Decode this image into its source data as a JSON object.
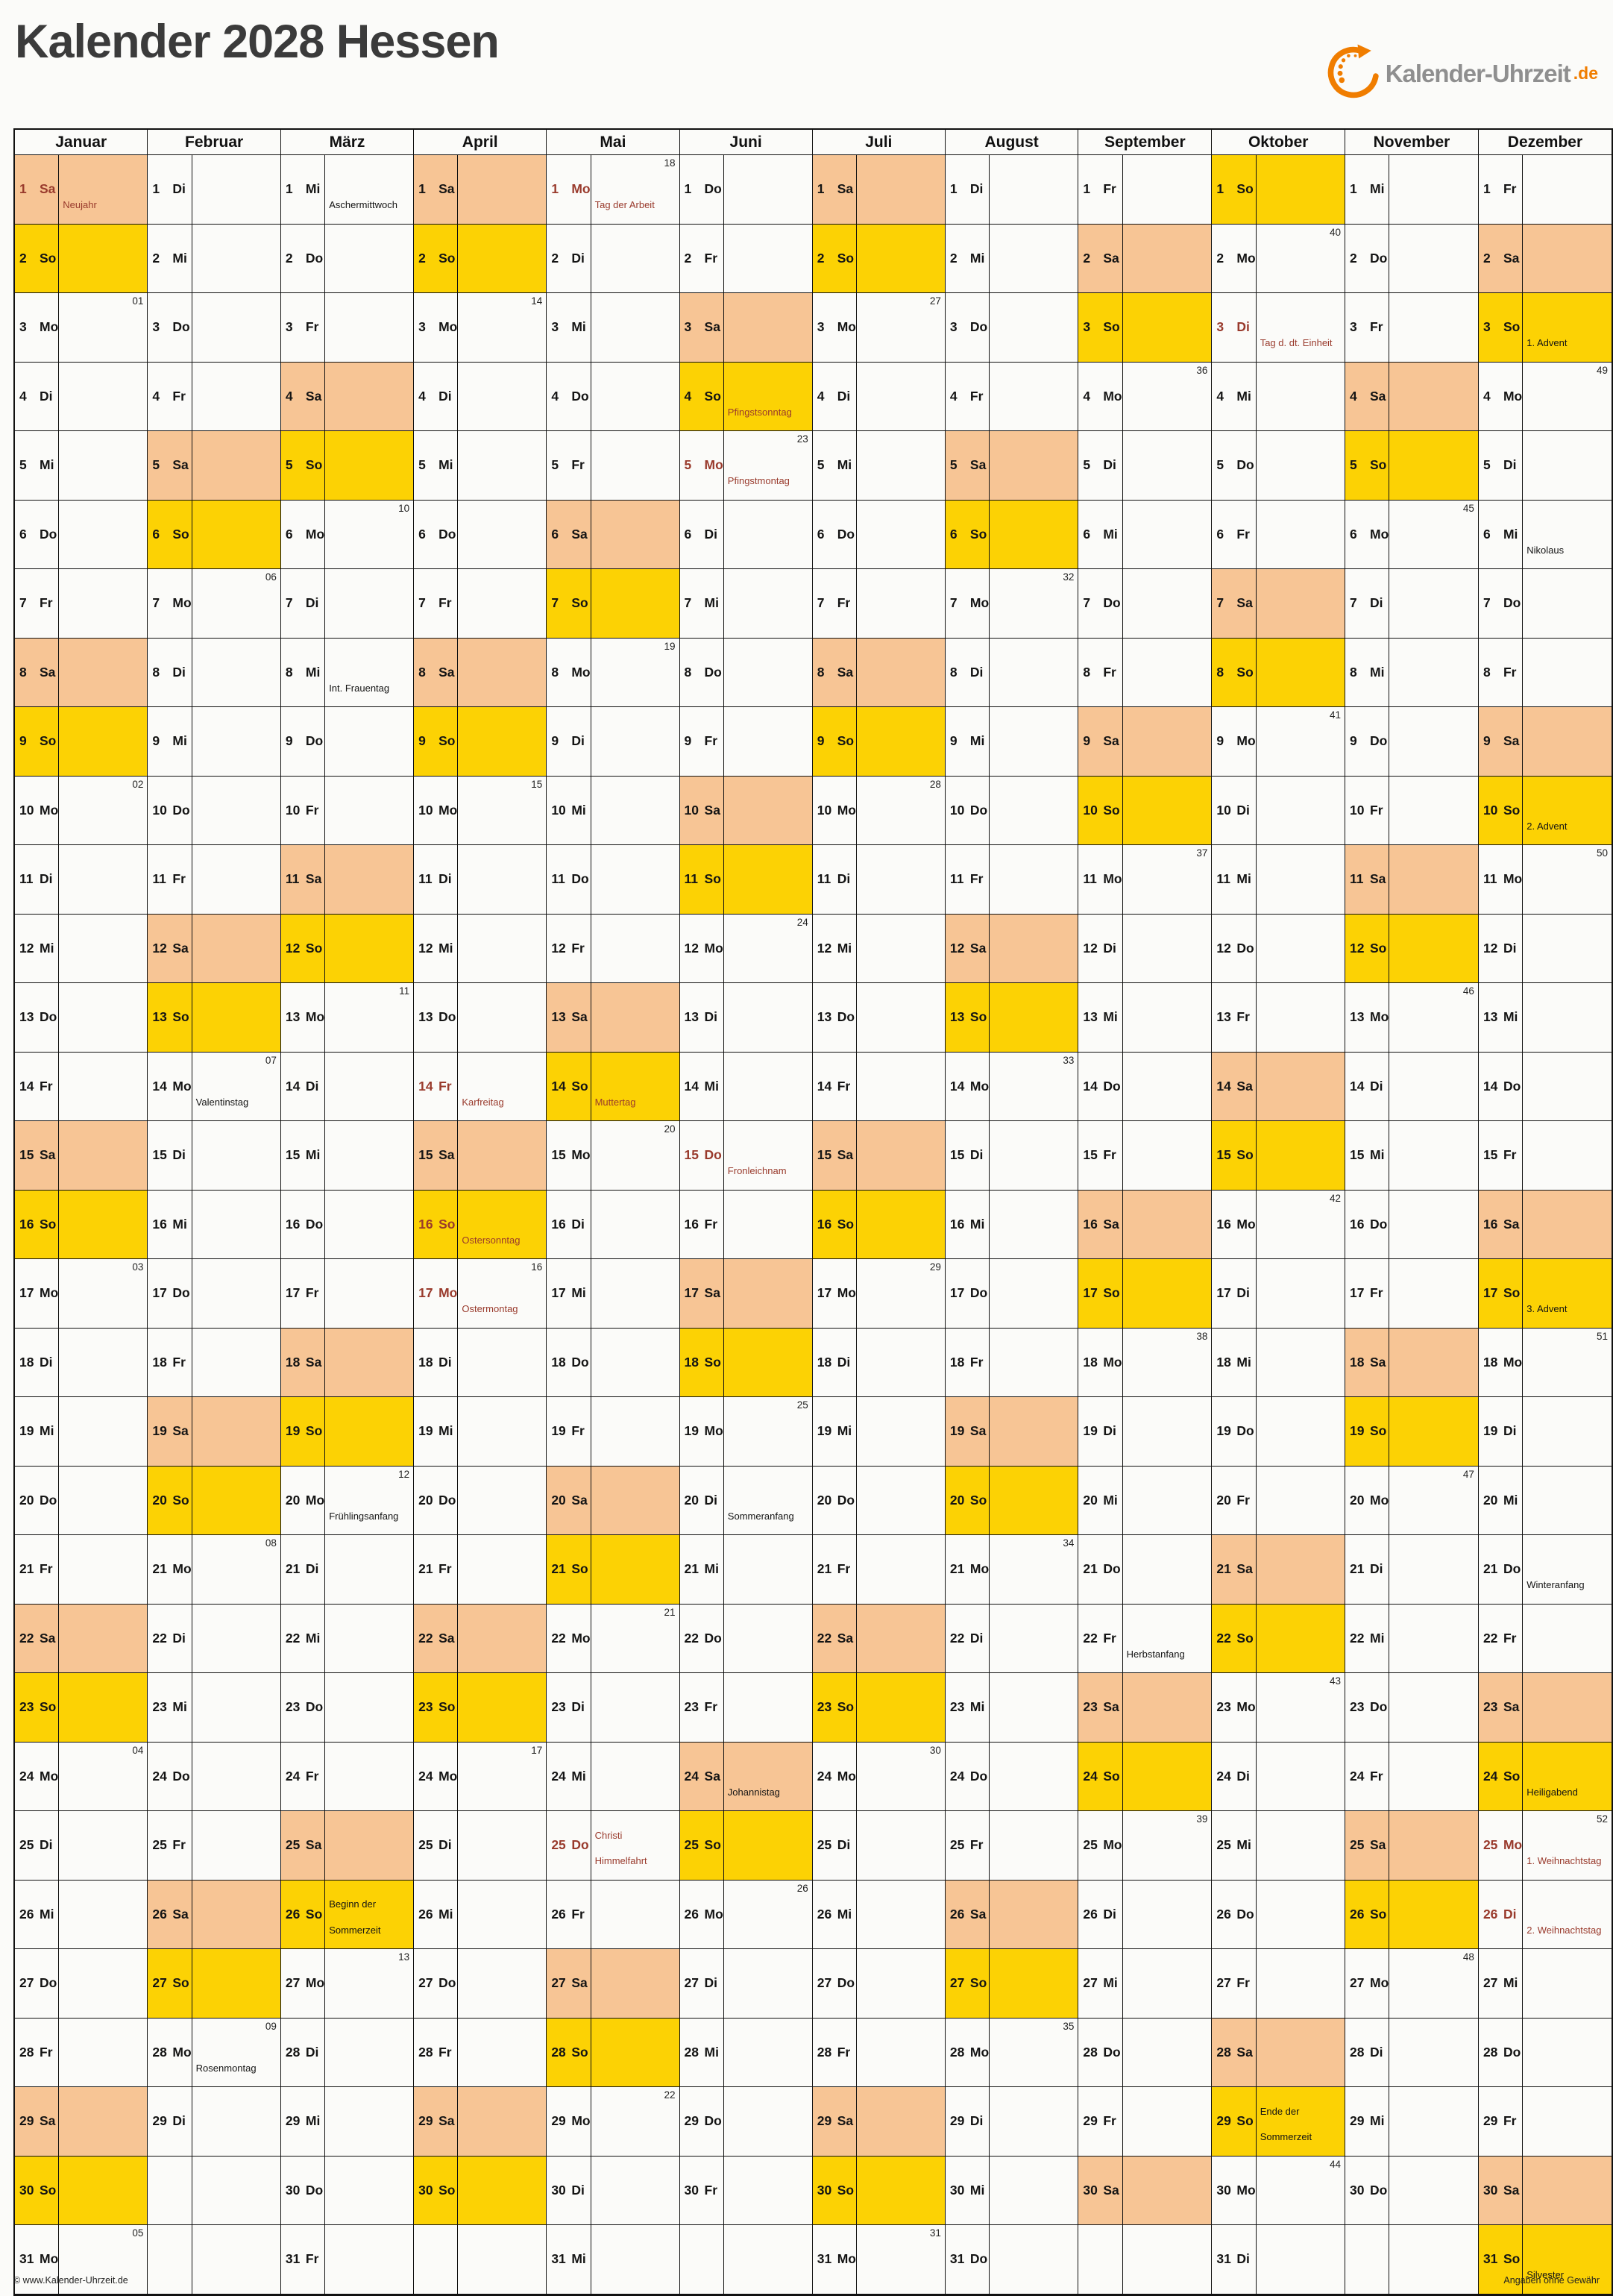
{
  "title": "Kalender 2028 Hessen",
  "logo": {
    "name": "Kalender-Uhrzeit",
    "tld": ".de",
    "icon": "clock-arrow-icon",
    "icon_color": "#F07D00"
  },
  "footer": {
    "left": "© www.Kalender-Uhrzeit.de",
    "right": "Angaben ohne Gewähr"
  },
  "colors": {
    "saturday_bg": "#F7C595",
    "sunday_bg": "#FCD204",
    "holiday_red": "#993A2C"
  },
  "grid_rows": 31,
  "weekday_cycle": [
    "Mo",
    "Di",
    "Mi",
    "Do",
    "Fr",
    "Sa",
    "So"
  ],
  "months": [
    {
      "name": "Januar",
      "num_days": 31,
      "start": 5,
      "weeks": {
        "3": "01",
        "10": "02",
        "17": "03",
        "24": "04",
        "31": "05"
      },
      "notes": [
        {
          "d": 1,
          "text": "Neujahr",
          "red": true,
          "red_day": true
        }
      ]
    },
    {
      "name": "Februar",
      "num_days": 29,
      "start": 1,
      "weeks": {
        "7": "06",
        "14": "07",
        "21": "08",
        "28": "09"
      },
      "notes": [
        {
          "d": 14,
          "text": "Valentinstag"
        },
        {
          "d": 28,
          "text": "Rosenmontag"
        }
      ]
    },
    {
      "name": "März",
      "num_days": 31,
      "start": 2,
      "weeks": {
        "6": "10",
        "13": "11",
        "20": "12",
        "27": "13"
      },
      "notes": [
        {
          "d": 1,
          "text": "Aschermittwoch"
        },
        {
          "d": 8,
          "text": "Int. Frauentag"
        },
        {
          "d": 20,
          "text": "Frühlingsanfang"
        },
        {
          "d": 26,
          "text": "Beginn der Sommerzeit"
        }
      ]
    },
    {
      "name": "April",
      "num_days": 30,
      "start": 5,
      "weeks": {
        "3": "14",
        "10": "15",
        "17": "16",
        "24": "17"
      },
      "notes": [
        {
          "d": 14,
          "text": "Karfreitag",
          "red": true,
          "red_day": true
        },
        {
          "d": 16,
          "text": "Ostersonntag",
          "red": true,
          "red_day": true
        },
        {
          "d": 17,
          "text": "Ostermontag",
          "red": true,
          "red_day": true
        }
      ]
    },
    {
      "name": "Mai",
      "num_days": 31,
      "start": 0,
      "weeks": {
        "1": "18",
        "8": "19",
        "15": "20",
        "22": "21",
        "29": "22"
      },
      "notes": [
        {
          "d": 1,
          "text": "Tag der Arbeit",
          "red": true,
          "red_day": true
        },
        {
          "d": 14,
          "text": "Muttertag",
          "red": true
        },
        {
          "d": 25,
          "text": "Christi Himmelfahrt",
          "red": true,
          "red_day": true
        }
      ]
    },
    {
      "name": "Juni",
      "num_days": 30,
      "start": 3,
      "weeks": {
        "5": "23",
        "12": "24",
        "19": "25",
        "26": "26"
      },
      "notes": [
        {
          "d": 4,
          "text": "Pfingstsonntag",
          "red": true
        },
        {
          "d": 5,
          "text": "Pfingstmontag",
          "red": true,
          "red_day": true
        },
        {
          "d": 15,
          "text": "Fronleichnam",
          "red": true,
          "red_day": true
        },
        {
          "d": 20,
          "text": "Sommeranfang"
        },
        {
          "d": 24,
          "text": "Johannistag"
        }
      ]
    },
    {
      "name": "Juli",
      "num_days": 31,
      "start": 5,
      "weeks": {
        "3": "27",
        "10": "28",
        "17": "29",
        "24": "30",
        "31": "31"
      },
      "notes": []
    },
    {
      "name": "August",
      "num_days": 31,
      "start": 1,
      "weeks": {
        "7": "32",
        "14": "33",
        "21": "34",
        "28": "35"
      },
      "notes": []
    },
    {
      "name": "September",
      "num_days": 30,
      "start": 4,
      "weeks": {
        "4": "36",
        "11": "37",
        "18": "38",
        "25": "39"
      },
      "notes": [
        {
          "d": 22,
          "text": "Herbstanfang"
        }
      ]
    },
    {
      "name": "Oktober",
      "num_days": 31,
      "start": 6,
      "weeks": {
        "2": "40",
        "9": "41",
        "16": "42",
        "23": "43",
        "30": "44"
      },
      "notes": [
        {
          "d": 3,
          "text": "Tag d. dt. Einheit",
          "red": true,
          "red_day": true
        },
        {
          "d": 29,
          "text": "Ende der Sommerzeit"
        }
      ]
    },
    {
      "name": "November",
      "num_days": 30,
      "start": 2,
      "weeks": {
        "6": "45",
        "13": "46",
        "20": "47",
        "27": "48"
      },
      "notes": []
    },
    {
      "name": "Dezember",
      "num_days": 31,
      "start": 4,
      "weeks": {
        "4": "49",
        "11": "50",
        "18": "51",
        "25": "52"
      },
      "notes": [
        {
          "d": 3,
          "text": "1. Advent"
        },
        {
          "d": 6,
          "text": "Nikolaus"
        },
        {
          "d": 10,
          "text": "2. Advent"
        },
        {
          "d": 17,
          "text": "3. Advent"
        },
        {
          "d": 21,
          "text": "Winteranfang"
        },
        {
          "d": 24,
          "text": "Heiligabend"
        },
        {
          "d": 25,
          "text": "1. Weihnachtstag",
          "red": true,
          "red_day": true
        },
        {
          "d": 26,
          "text": "2. Weihnachtstag",
          "red": true,
          "red_day": true
        },
        {
          "d": 31,
          "text": "Silvester"
        }
      ]
    }
  ]
}
